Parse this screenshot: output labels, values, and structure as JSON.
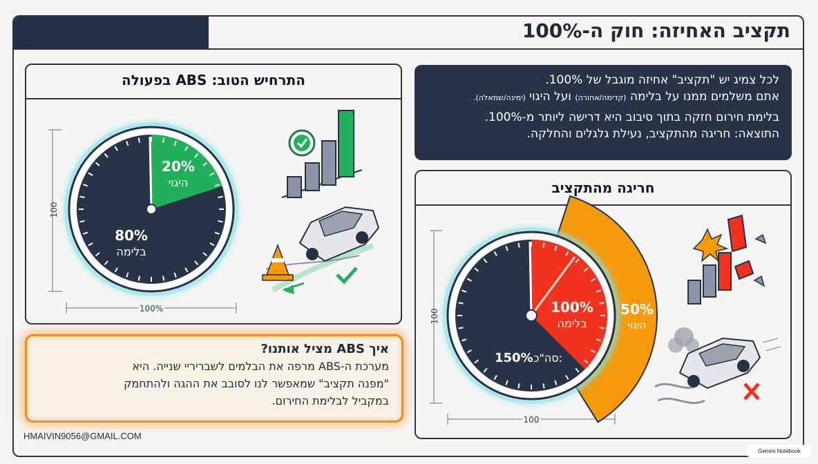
{
  "header": {
    "title": "תקציב האחיזה: חוק ה-100%"
  },
  "intro": {
    "line1": "לכל צמיג יש \"תקציב\" אחיזה מוגבל של 100%.",
    "line2_start": "אתם משלמים ממנו על בלימה",
    "line2_braking_note": "(קדימה/אחורה)",
    "line2_mid": "ועל היגוי",
    "line2_steering_note": "(ימינה/שמאלה).",
    "line3": "בלימת חירום חזקה בתוך סיבוב היא דרישה ליותר מ-100%.",
    "line4": "התוצאה: חריגה מהתקציב, נעילת גלגלים והחלקה."
  },
  "good_panel": {
    "title": "התרחיש הטוב: ABS בפעולה",
    "steering_value": 20,
    "steering_percent": "20%",
    "steering_label": "היגוי",
    "braking_value": 80,
    "braking_percent": "80%",
    "braking_label": "בלימה",
    "dim_vertical": "100",
    "dim_horizontal": "100%"
  },
  "exceed_panel": {
    "title": "חריגה מהתקציב",
    "braking_value": 100,
    "braking_percent": "100%",
    "braking_label": "בלימה",
    "steering_value": 50,
    "steering_percent": "50%",
    "steering_label": "היגוי",
    "total_label": "סה\"כ:",
    "total_percent": "150%",
    "dim_vertical": "100",
    "dim_horizontal": "100"
  },
  "abs_box": {
    "title": "איך ABS מציל אותנו?",
    "line1": "מערכת ה-ABS מרפה את הבלמים לשבריריי שנייה. היא",
    "line2": "\"מפנה תקציב\" שמאפשר לנו לסובב את ההגה ולהתחמק",
    "line3": "במקביל לבלימת החירום."
  },
  "footer": {
    "email": "HMAIVIN9056@GMAIL.COM",
    "brand": "Gemini Notebook"
  },
  "colors": {
    "dark": "#283347",
    "green": "#22b05a",
    "red": "#f0321e",
    "orange": "#f59a0c"
  }
}
